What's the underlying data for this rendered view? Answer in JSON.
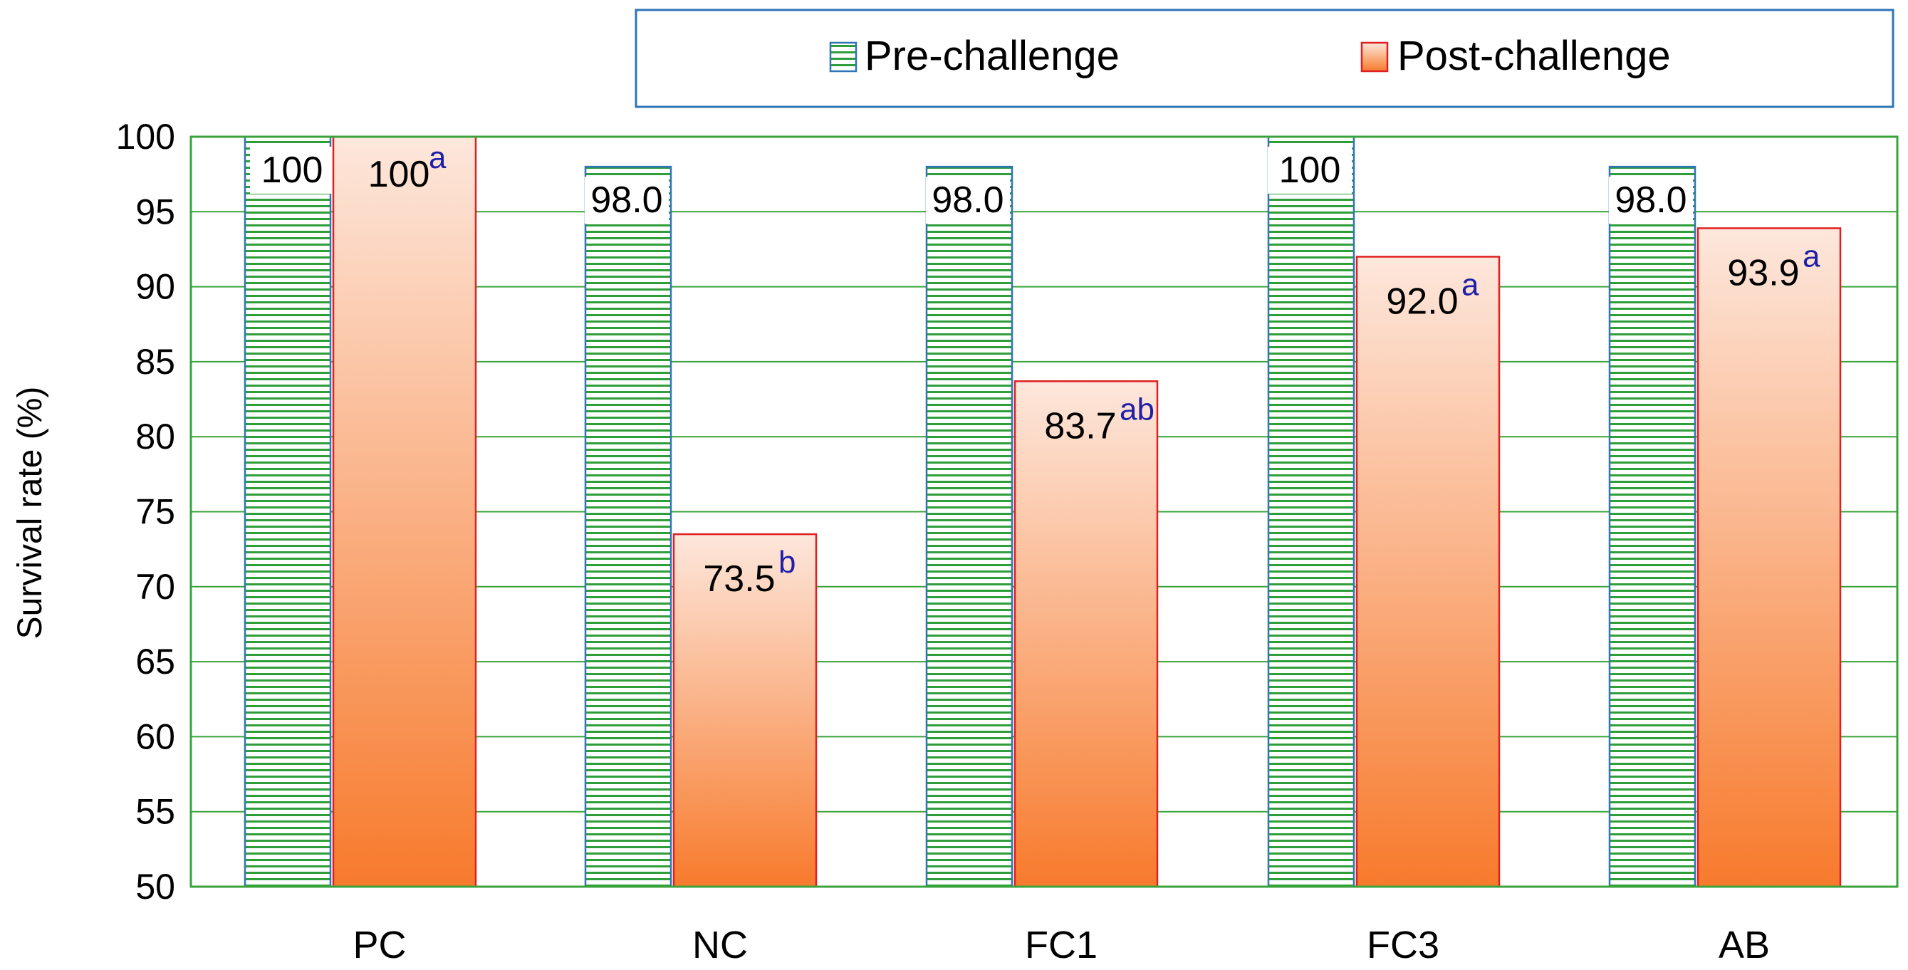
{
  "chart_data": {
    "type": "bar",
    "title": "",
    "xlabel": "",
    "ylabel": "Survival rate (%)",
    "ylim": [
      50,
      100
    ],
    "yticks": [
      50,
      55,
      60,
      65,
      70,
      75,
      80,
      85,
      90,
      95,
      100
    ],
    "grid": true,
    "legend_position": "top",
    "categories": [
      "PC",
      "NC",
      "FC1",
      "FC3",
      "AB"
    ],
    "series": [
      {
        "name": "Pre-challenge",
        "values": [
          100,
          98.0,
          98.0,
          100,
          98.0
        ],
        "labels": [
          "100",
          "98.0",
          "98.0",
          "100",
          "98.0"
        ],
        "fill": "hatched-green",
        "colors": {
          "stroke": "#2e75b6",
          "hatch": "#2e9e3a"
        }
      },
      {
        "name": "Post-challenge",
        "values": [
          100,
          73.5,
          83.7,
          92.0,
          93.9
        ],
        "labels": [
          "100",
          "73.5",
          "83.7",
          "92.0",
          "93.9"
        ],
        "superscripts": [
          "a",
          "b",
          "ab",
          "a",
          "a"
        ],
        "fill": "gradient-orange",
        "colors": {
          "stroke": "#e02020",
          "top": "#fde7dc",
          "bottom": "#f77a2c"
        }
      }
    ],
    "colors": {
      "grid": "#3aa33a",
      "legend_border": "#2e75b6",
      "superscript": "#1f1fa8"
    }
  }
}
